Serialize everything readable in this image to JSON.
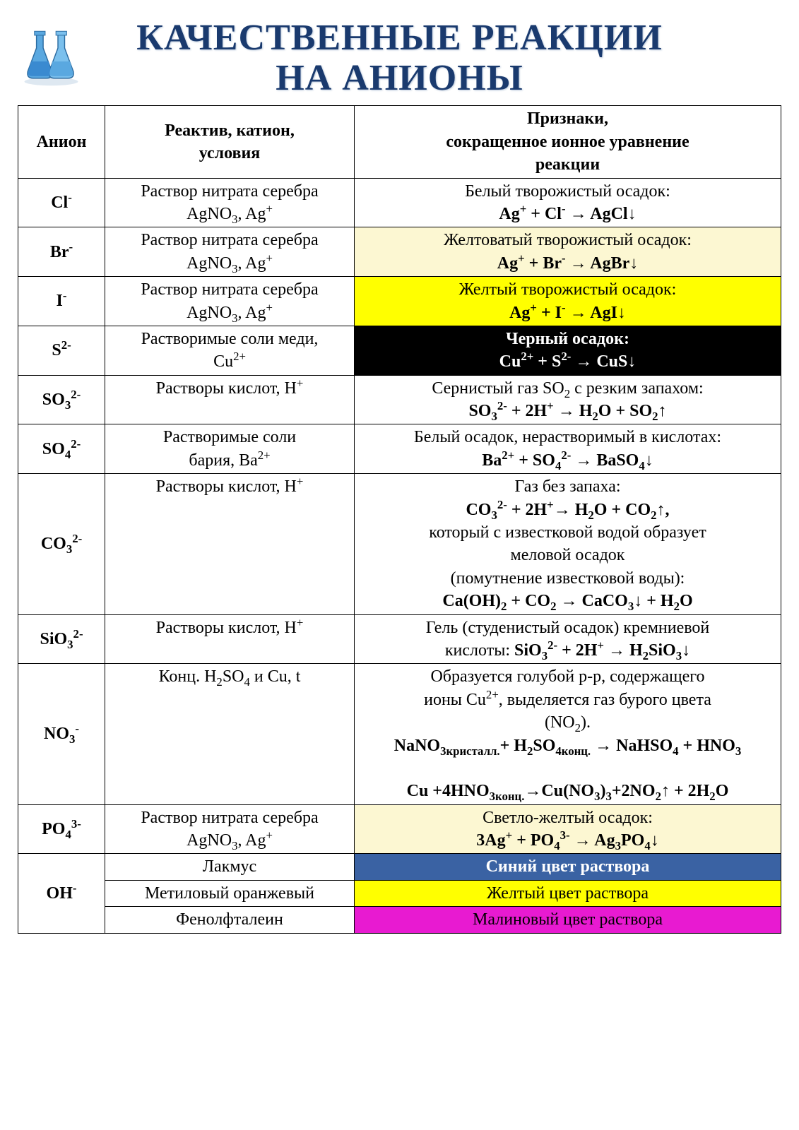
{
  "title_line1": "КАЧЕСТВЕННЫЕ РЕАКЦИИ",
  "title_line2": "НА АНИОНЫ",
  "colors": {
    "title": "#1a3a6e",
    "cream": "#fcf7d2",
    "yellow": "#ffff00",
    "black": "#000000",
    "blue": "#3a62a3",
    "magenta": "#e81ad1",
    "white": "#ffffff"
  },
  "headers": {
    "anion": "Анион",
    "reagent_l1": "Реактив, катион,",
    "reagent_l2": "условия",
    "signs_l1": "Признаки,",
    "signs_l2": "сокращенное ионное уравнение",
    "signs_l3": "реакции"
  },
  "rows": [
    {
      "anion_html": "Cl<sup>-</sup>",
      "reagent_html": "Раствор нитрата серебра<br>AgNO<sub>3</sub>, Ag<sup>+</sup>",
      "signs_html": "Белый творожистый  осадок:<br><b>Ag<sup>+</sup> + Cl<sup>-</sup> → AgCl↓</b>",
      "signs_bg": "#ffffff",
      "signs_color": "#000000"
    },
    {
      "anion_html": "Br<sup>-</sup>",
      "reagent_html": "Раствор нитрата серебра<br>AgNO<sub>3</sub>, Ag<sup>+</sup>",
      "signs_html": "Желтоватый творожистый  осадок:<br><b>Ag<sup>+</sup> + Br<sup>-</sup> → AgBr↓</b>",
      "signs_bg": "#fcf7d2",
      "signs_color": "#000000"
    },
    {
      "anion_html": "I<sup>-</sup>",
      "reagent_html": "Раствор нитрата серебра<br>AgNO<sub>3</sub>, Ag<sup>+</sup>",
      "signs_html": "Желтый творожистый  осадок:<br><b>Ag<sup>+</sup> + I<sup>-</sup> → AgI↓</b>",
      "signs_bg": "#ffff00",
      "signs_color": "#000000"
    },
    {
      "anion_html": "S<sup>2-</sup>",
      "reagent_html": "Растворимые соли меди,<br>Cu<sup>2+</sup>",
      "signs_html": "<b>Черный осадок:<br>Cu<sup>2+</sup> + S<sup>2-</sup> → CuS↓</b>",
      "signs_bg": "#000000",
      "signs_color": "#ffffff"
    },
    {
      "anion_html": "SO<sub>3</sub><sup>2-</sup>",
      "reagent_html": "Растворы кислот,  H<sup>+</sup>",
      "signs_html": "Сернистый газ SO<sub>2</sub> с резким запахом:<br><b>SO<sub>3</sub><sup>2-</sup> + 2H<sup>+</sup> → H<sub>2</sub>O + SO<sub>2</sub>↑</b>",
      "signs_bg": "#ffffff",
      "signs_color": "#000000"
    },
    {
      "anion_html": "SO<sub>4</sub><sup>2-</sup>",
      "reagent_html": "Растворимые соли<br>бария, Ba<sup>2+</sup>",
      "signs_html": "Белый осадок, нерастворимый в кислотах:<br><b>Ba<sup>2+</sup> + SO<sub>4</sub><sup>2-</sup> → BaSO<sub>4</sub>↓</b>",
      "signs_bg": "#ffffff",
      "signs_color": "#000000"
    },
    {
      "anion_html": "CO<sub>3</sub><sup>2-</sup>",
      "reagent_html": "Растворы кислот,  H<sup>+</sup>",
      "signs_html": "Газ без запаха:<br><b>CO<sub>3</sub><sup>2-</sup> + 2H<sup>+</sup>→ H<sub>2</sub>O + CO<sub>2</sub>↑,</b><br>который с известковой водой образует<br>меловой осадок<br>(помутнение известковой воды):<br><b>Ca(OH)<sub>2</sub> + CO<sub>2</sub> → CaCO<sub>3</sub>↓ + H<sub>2</sub>O</b>",
      "signs_bg": "#ffffff",
      "signs_color": "#000000"
    },
    {
      "anion_html": "SiO<sub>3</sub><sup>2-</sup>",
      "reagent_html": "Растворы кислот,  H<sup>+</sup>",
      "signs_html": "Гель (студенистый осадок)  кремниевой<br>кислоты:  <b>SiO<sub>3</sub><sup>2-</sup> + 2H<sup>+</sup> → H<sub>2</sub>SiO<sub>3</sub>↓</b>",
      "signs_bg": "#ffffff",
      "signs_color": "#000000"
    },
    {
      "anion_html": "NO<sub>3</sub><sup>-</sup>",
      "reagent_html": "Конц. H<sub>2</sub>SO<sub>4</sub> и Cu, t",
      "signs_html": "Образуется  голубой  р-р, содержащего<br>ионы Cu<sup>2+</sup>, выделяется  газ бурого цвета<br>(NO<sub>2</sub>).<br><b>NaNO<sub>3кристалл.</sub>+ H<sub>2</sub>SO<sub>4конц.</sub> → NaHSO<sub>4</sub> + HNO<sub>3</sub></b><br><br><b>Cu +4HNO<sub>3конц.</sub>→Cu(NO<sub>3</sub>)<sub>3</sub>+2NO<sub>2</sub>↑ + 2H<sub>2</sub>O</b>",
      "signs_bg": "#ffffff",
      "signs_color": "#000000"
    },
    {
      "anion_html": "PO<sub>4</sub><sup>3-</sup>",
      "reagent_html": "Раствор нитрата серебра<br>AgNO<sub>3</sub>, Ag<sup>+</sup>",
      "signs_html": "Светло-желтый осадок:<br><b>3Ag<sup>+</sup> + PO<sub>4</sub><sup>3-</sup>  → Ag<sub>3</sub>PO<sub>4</sub>↓</b>",
      "signs_bg": "#fcf7d2",
      "signs_color": "#000000"
    }
  ],
  "oh_group": {
    "anion_html": "OH<sup>-</sup>",
    "items": [
      {
        "reagent": "Лакмус",
        "signs": "Синий цвет раствора",
        "bg": "#3a62a3",
        "color": "#ffffff",
        "bold": true
      },
      {
        "reagent": "Метиловый оранжевый",
        "signs": "Желтый цвет раствора",
        "bg": "#ffff00",
        "color": "#000000",
        "bold": false
      },
      {
        "reagent": "Фенолфталеин",
        "signs": "Малиновый цвет раствора",
        "bg": "#e81ad1",
        "color": "#000000",
        "bold": false
      }
    ]
  }
}
